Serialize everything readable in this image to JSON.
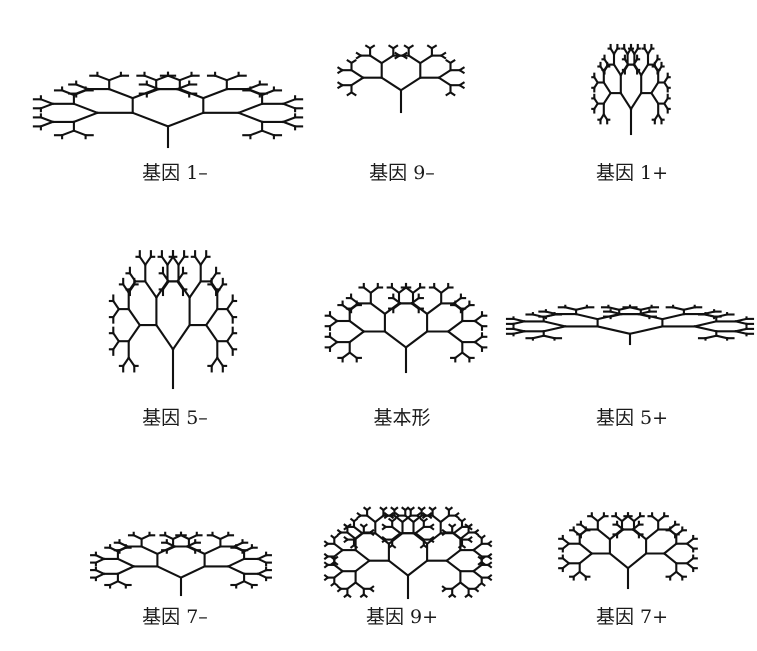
{
  "figures": [
    {
      "label": "基因 1–"
    },
    {
      "label": "基因 9–"
    },
    {
      "label": "基因 1+"
    },
    {
      "label": "基因 5–"
    },
    {
      "label": "基本形"
    },
    {
      "label": "基因 5+"
    },
    {
      "label": "基因 7–"
    },
    {
      "label": "基因 9+"
    },
    {
      "label": "基因 7+"
    }
  ]
}
